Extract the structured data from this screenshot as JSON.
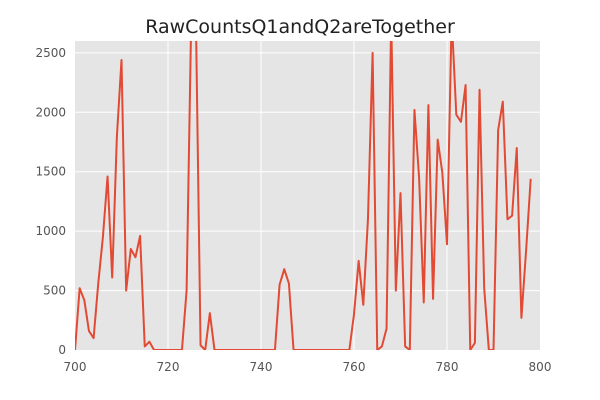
{
  "chart_data": {
    "type": "line",
    "title": "RawCountsQ1andQ2areTogether",
    "xlabel": "",
    "ylabel": "",
    "xlim": [
      700,
      800
    ],
    "ylim": [
      0,
      2600
    ],
    "x_ticks": [
      700,
      720,
      740,
      760,
      780,
      800
    ],
    "y_ticks": [
      0,
      500,
      1000,
      1500,
      2000,
      2500
    ],
    "grid": true,
    "colors": {
      "background": "#e5e5e5",
      "grid": "#ffffff",
      "line": "#e24a33"
    },
    "series": [
      {
        "x": [
          700,
          701,
          702,
          703,
          704,
          705,
          706,
          707,
          708,
          709,
          710,
          711,
          712,
          713,
          714,
          715,
          716,
          717,
          718,
          719,
          720,
          721,
          722,
          723,
          724,
          725,
          726,
          727,
          728,
          729,
          730,
          731,
          732,
          733,
          734,
          735,
          736,
          737,
          738,
          739,
          740,
          741,
          742,
          743,
          744,
          745,
          746,
          747,
          748,
          749,
          750,
          751,
          752,
          753,
          754,
          755,
          756,
          757,
          758,
          759,
          760,
          761,
          762,
          763,
          764,
          765,
          766,
          767,
          768,
          769,
          770,
          771,
          772,
          773,
          774,
          775,
          776,
          777,
          778,
          779,
          780,
          781,
          782,
          783,
          784,
          785,
          786,
          787,
          788,
          789,
          790,
          791,
          792,
          793,
          794,
          795,
          796,
          797,
          798
        ],
        "values": [
          0,
          520,
          420,
          160,
          100,
          560,
          950,
          1460,
          610,
          1790,
          2440,
          500,
          850,
          780,
          960,
          30,
          70,
          0,
          0,
          0,
          0,
          0,
          0,
          0,
          500,
          2800,
          2800,
          40,
          0,
          310,
          0,
          0,
          0,
          0,
          0,
          0,
          0,
          0,
          0,
          0,
          0,
          0,
          0,
          0,
          550,
          680,
          560,
          0,
          0,
          0,
          0,
          0,
          0,
          0,
          0,
          0,
          0,
          0,
          0,
          0,
          300,
          750,
          380,
          1100,
          2500,
          0,
          30,
          180,
          2800,
          500,
          1320,
          30,
          0,
          2020,
          1450,
          400,
          2060,
          430,
          1770,
          1490,
          890,
          2800,
          1980,
          1920,
          2230,
          0,
          60,
          2190,
          520,
          0,
          0,
          1850,
          2090,
          1100,
          1130,
          1700,
          270,
          830,
          1440
        ]
      }
    ]
  }
}
